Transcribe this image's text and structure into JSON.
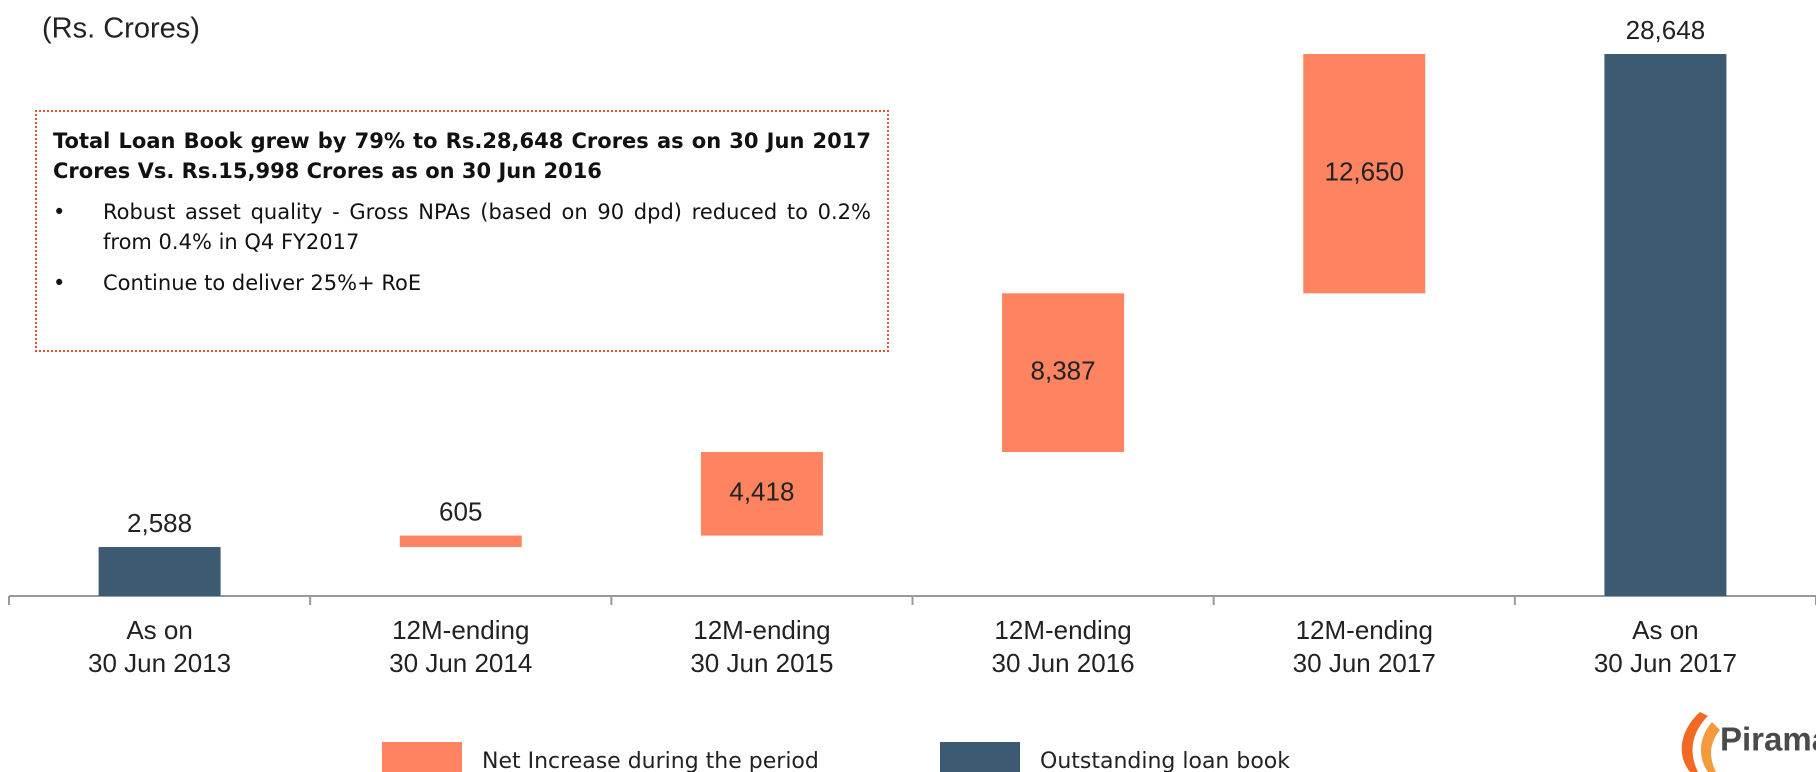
{
  "chart_data": {
    "type": "waterfall",
    "subtitle": "(Rs. Crores)",
    "categories": [
      [
        "As on",
        "30 Jun 2013"
      ],
      [
        "12M-ending",
        "30 Jun 2014"
      ],
      [
        "12M-ending",
        "30 Jun 2015"
      ],
      [
        "12M-ending",
        "30 Jun 2016"
      ],
      [
        "12M-ending",
        "30 Jun 2017"
      ],
      [
        "As on",
        "30 Jun 2017"
      ]
    ],
    "series": [
      {
        "name": "Net Increase during the period",
        "color": "#fd8361",
        "kind": "increase",
        "values": [
          null,
          605,
          4418,
          8387,
          12650,
          null
        ],
        "value_labels": [
          null,
          "605",
          "4,418",
          "8,387",
          "12,650",
          null
        ]
      },
      {
        "name": "Outstanding loan book",
        "color": "#3d5a73",
        "kind": "total",
        "values": [
          2588,
          null,
          null,
          null,
          null,
          28648
        ],
        "value_labels": [
          "2,588",
          null,
          null,
          null,
          null,
          "28,648"
        ]
      }
    ],
    "annotation": {
      "heading": "Total Loan Book grew by 79% to Rs.28,648 Crores as on 30 Jun 2017 Crores Vs. Rs.15,998 Crores as on 30 Jun 2016",
      "bullets": [
        "Robust asset quality - Gross NPAs (based on 90 dpd) reduced to 0.2% from 0.4% in Q4 FY2017",
        "Continue to deliver 25%+ RoE"
      ]
    },
    "logo": "Pirama"
  }
}
